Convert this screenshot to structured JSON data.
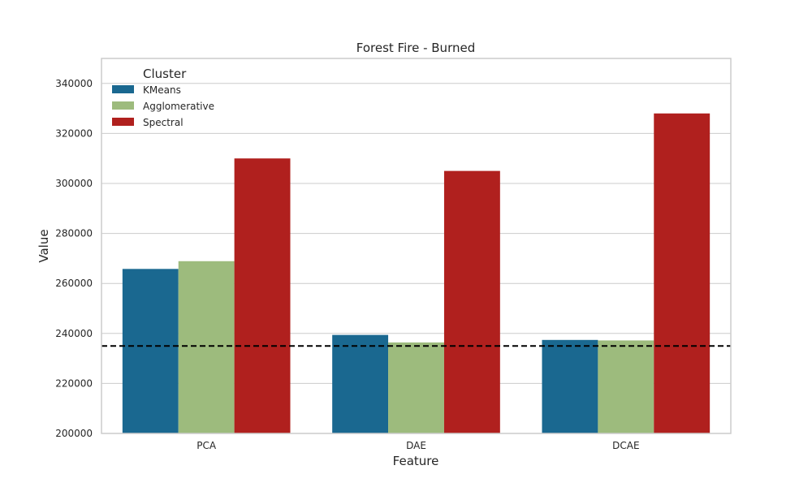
{
  "chart_data": {
    "type": "bar",
    "title": "Forest Fire - Burned",
    "xlabel": "Feature",
    "ylabel": "Value",
    "categories": [
      "PCA",
      "DAE",
      "DCAE"
    ],
    "series": [
      {
        "name": "KMeans",
        "color": "#1a6890",
        "values": [
          265800,
          239400,
          237400
        ]
      },
      {
        "name": "Agglomerative",
        "color": "#9dbb7d",
        "values": [
          268900,
          236400,
          237200
        ]
      },
      {
        "name": "Spectral",
        "color": "#b0201e",
        "values": [
          310000,
          305000,
          328000
        ]
      }
    ],
    "reference_line": {
      "value": 235000,
      "style": "dashed",
      "color": "#000000"
    },
    "ylim": [
      200000,
      350000
    ],
    "yticks": [
      "200000",
      "220000",
      "240000",
      "260000",
      "280000",
      "300000",
      "320000",
      "340000"
    ],
    "grid": true,
    "legend": {
      "title": "Cluster",
      "placement": "top-left"
    }
  }
}
